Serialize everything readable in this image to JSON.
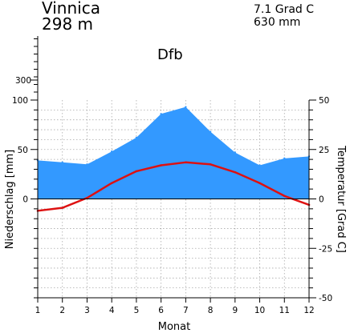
{
  "header": {
    "station_name": "Vinnica",
    "elevation": "298 m",
    "annual_temperature": "7.1 Grad C",
    "annual_precipitation": "630 mm",
    "climate_class": "Dfb"
  },
  "chart_data": {
    "type": "area",
    "title": "",
    "xlabel": "Monat",
    "ylabel_left": "Niederschlag [mm]",
    "ylabel_right": "Temperatur [Grad C]",
    "categories": [
      "1",
      "2",
      "3",
      "4",
      "5",
      "6",
      "7",
      "8",
      "9",
      "10",
      "11",
      "12"
    ],
    "precip_ticks": [
      "100",
      "50",
      "0"
    ],
    "precip_extended_tick": "300",
    "temp_ticks": [
      "50",
      "25",
      "0",
      "-25",
      "-50"
    ],
    "precip_range": [
      -100,
      100
    ],
    "temp_range": [
      -50,
      50
    ],
    "series": [
      {
        "name": "",
        "kind": "precipitation",
        "color": "#3399ff",
        "values": [
          39,
          37,
          35,
          48,
          62,
          86,
          93,
          68,
          47,
          34,
          41,
          43
        ]
      },
      {
        "name": "",
        "kind": "temperature",
        "color": "#dd1111",
        "values": [
          -6,
          -4.5,
          0.5,
          8,
          14,
          17,
          18.5,
          17.5,
          13.5,
          8,
          1.5,
          -3
        ]
      }
    ],
    "grid": true,
    "legend": "none"
  }
}
